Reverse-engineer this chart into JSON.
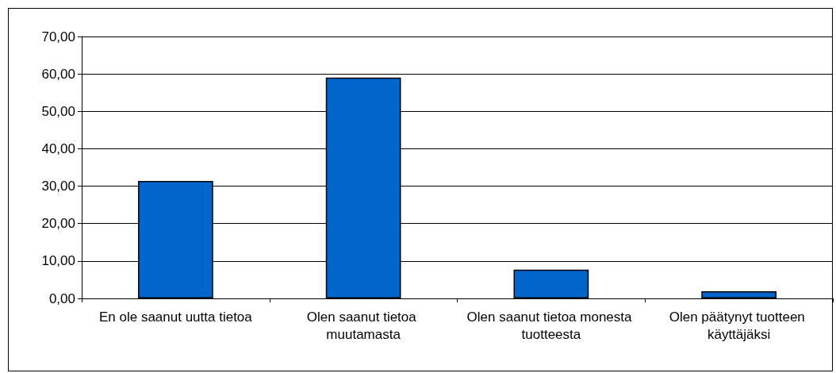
{
  "chart_data": {
    "type": "bar",
    "categories": [
      "En ole saanut uutta tietoa",
      "Olen saanut tietoa muutamasta",
      "Olen saanut tietoa monesta tuotteesta",
      "Olen päätynyt tuotteen käyttäjäksi"
    ],
    "values": [
      31.4,
      59.0,
      7.7,
      1.9
    ],
    "color": "#0066cc",
    "ylim": [
      0,
      70
    ],
    "yticks": [
      {
        "value": 0,
        "label": "0,00"
      },
      {
        "value": 10,
        "label": "10,00"
      },
      {
        "value": 20,
        "label": "20,00"
      },
      {
        "value": 30,
        "label": "30,00"
      },
      {
        "value": 40,
        "label": "40,00"
      },
      {
        "value": 50,
        "label": "50,00"
      },
      {
        "value": 60,
        "label": "60,00"
      },
      {
        "value": 70,
        "label": "70,00"
      }
    ],
    "grid": "y"
  }
}
